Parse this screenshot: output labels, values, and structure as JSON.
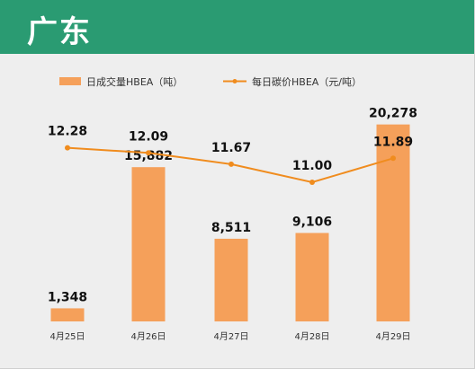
{
  "header": {
    "title": "广东"
  },
  "colors": {
    "header_bg": "#2a9b72",
    "bar": "#f5a05a",
    "line": "#f08c1e",
    "background": "#eeeeee"
  },
  "chart_data": {
    "type": "bar+line",
    "categories": [
      "4月25日",
      "4月26日",
      "4月27日",
      "4月28日",
      "4月29日"
    ],
    "series": [
      {
        "name": "日成交量HBEA（吨）",
        "type": "bar",
        "values": [
          1348,
          15882,
          8511,
          9106,
          20278
        ],
        "labels": [
          "1,348",
          "15,882",
          "8,511",
          "9,106",
          "20,278"
        ]
      },
      {
        "name": "每日碳价HBEA（元/吨）",
        "type": "line",
        "values": [
          12.28,
          12.09,
          11.67,
          11.0,
          11.89
        ],
        "labels": [
          "12.28",
          "12.09",
          "11.67",
          "11.00",
          "11.89"
        ]
      }
    ],
    "legend_position": "top",
    "bar_ylim": [
      0,
      22000
    ],
    "line_ylim": [
      10.6,
      12.6
    ],
    "grid": false
  }
}
